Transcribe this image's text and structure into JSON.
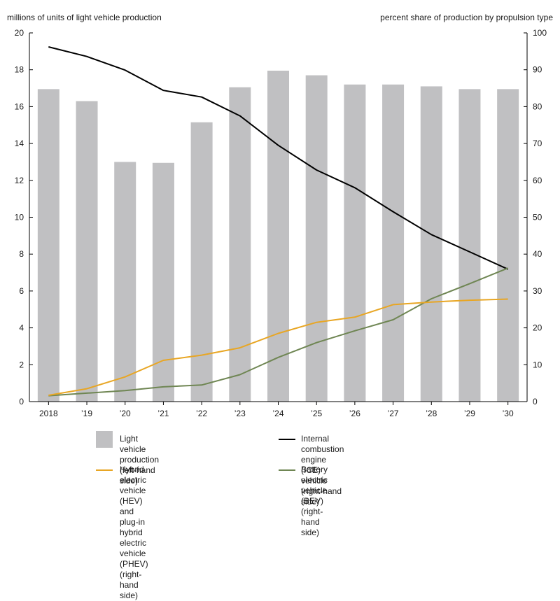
{
  "chart_data": {
    "type": "bar",
    "left_axis_label": "millions of units of light vehicle production",
    "right_axis_label": "percent share of production by propulsion type",
    "categories": [
      "2018",
      "’19",
      "’20",
      "’21",
      "’22",
      "’23",
      "’24",
      "’25",
      "’26",
      "’27",
      "’28",
      "’29",
      "’30"
    ],
    "left_ylim": [
      0,
      20
    ],
    "left_ticks": [
      "0",
      "2",
      "4",
      "6",
      "8",
      "10",
      "12",
      "14",
      "16",
      "18",
      "20"
    ],
    "right_ylim": [
      0,
      100
    ],
    "right_ticks": [
      "0",
      "10",
      "20",
      "30",
      "40",
      "50",
      "60",
      "70",
      "80",
      "90",
      "100"
    ],
    "series": [
      {
        "name": "Light vehicle production",
        "axis": "left",
        "kind": "bar",
        "color": "#c0c0c2",
        "legend_text": "Light vehicle production\n(left-hand side)",
        "values": [
          16.95,
          16.3,
          13.0,
          12.95,
          15.15,
          17.05,
          17.95,
          17.7,
          17.2,
          17.2,
          17.1,
          16.95,
          16.95
        ]
      },
      {
        "name": "Internal combustion engine (ICE) vehicle",
        "axis": "right",
        "kind": "line",
        "color": "#000000",
        "legend_text": "Internal combustion engine (ICE) vehicle\n(right-hand side)",
        "values": [
          96.2,
          93.6,
          89.9,
          84.4,
          82.6,
          77.5,
          69.5,
          62.8,
          58.0,
          51.5,
          45.3,
          40.6,
          35.9
        ]
      },
      {
        "name": "Hybrid electric vehicle (HEV) and plug-in hybrid electric vehicle (PHEV)",
        "axis": "right",
        "kind": "line",
        "color": "#e8a624",
        "legend_text": "Hybrid electric vehicle (HEV) and\nplug-in hybrid electric vehicle (PHEV)\n(right-hand side)",
        "values": [
          1.7,
          3.5,
          6.7,
          11.2,
          12.6,
          14.6,
          18.5,
          21.5,
          22.9,
          26.3,
          27.0,
          27.5,
          27.8
        ]
      },
      {
        "name": "Battery electric vehicle (BEV)",
        "axis": "right",
        "kind": "line",
        "color": "#6f8653",
        "legend_text": "Battery electric vehicle (BEV)\n(right-hand side)",
        "values": [
          1.6,
          2.3,
          3.0,
          4.0,
          4.5,
          7.3,
          12.0,
          16.0,
          19.2,
          22.2,
          27.9,
          32.0,
          36.2
        ]
      }
    ]
  }
}
